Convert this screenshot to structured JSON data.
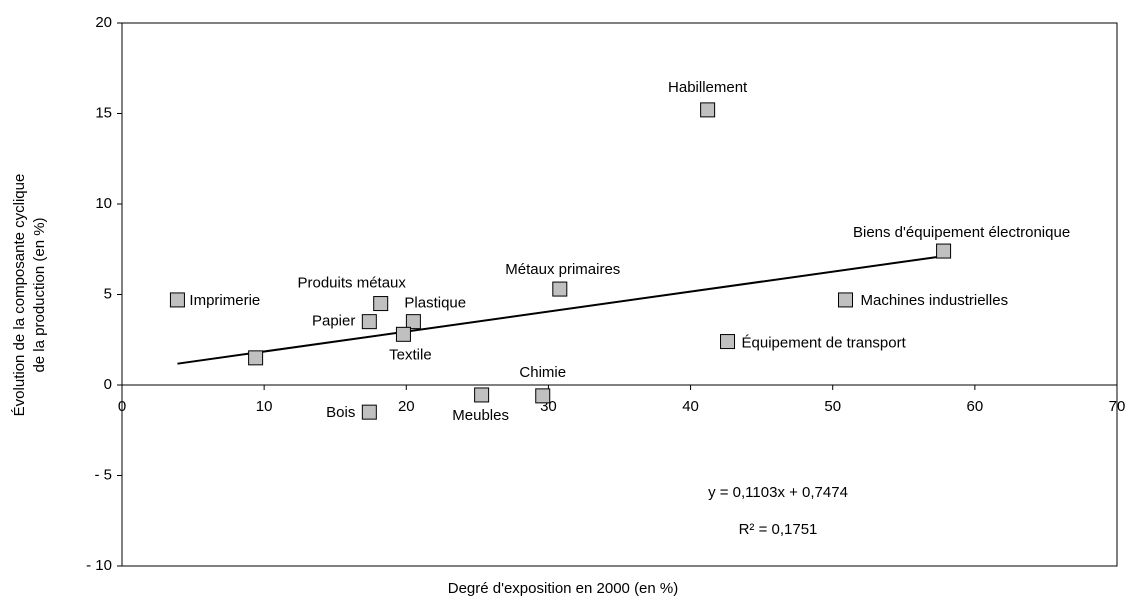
{
  "chart_data": {
    "type": "scatter",
    "x_label": "Degré d'exposition en 2000 (en %)",
    "y_label": [
      "Évolution de la composante cyclique",
      "de la production (en %)"
    ],
    "color": "#c0c0c0",
    "points": [
      {
        "name": "Imprimerie",
        "x": 3.9,
        "y": 4.7
      },
      {
        "name": null,
        "x": 9.4,
        "y": 1.5
      },
      {
        "name": "Produits métaux",
        "x": 18.2,
        "y": 4.5
      },
      {
        "name": "Papier",
        "x": 17.4,
        "y": 3.5
      },
      {
        "name": "Plastique",
        "x": 20.5,
        "y": 3.5
      },
      {
        "name": "Textile",
        "x": 19.8,
        "y": 2.8
      },
      {
        "name": "Métaux primaires",
        "x": 30.8,
        "y": 5.3
      },
      {
        "name": "Habillement",
        "x": 41.2,
        "y": 15.2
      },
      {
        "name": "Biens d'équipement électronique",
        "x": 57.8,
        "y": 7.4
      },
      {
        "name": "Machines industrielles",
        "x": 50.9,
        "y": 4.7
      },
      {
        "name": "Équipement de transport",
        "x": 42.6,
        "y": 2.4
      },
      {
        "name": "Meubles",
        "x": 25.3,
        "y": -0.55
      },
      {
        "name": "Chimie",
        "x": 29.6,
        "y": -0.6
      },
      {
        "name": "Bois",
        "x": 17.4,
        "y": -1.5
      }
    ],
    "trendline": {
      "equation": "y = 0,1103x + 0,7474",
      "r2_label": "R² = 0,1751",
      "slope": 0.1103,
      "intercept": 0.7474,
      "x": [
        3.9,
        57.8
      ]
    },
    "xlim": [
      0,
      70
    ],
    "xticks": [
      0,
      10,
      20,
      30,
      40,
      50,
      60,
      70
    ],
    "ylim": [
      -10,
      20
    ],
    "yticks": [
      {
        "value": -10,
        "label": "- 10"
      },
      {
        "value": -5,
        "label": "- 5"
      },
      0,
      5,
      10,
      15,
      20
    ]
  }
}
